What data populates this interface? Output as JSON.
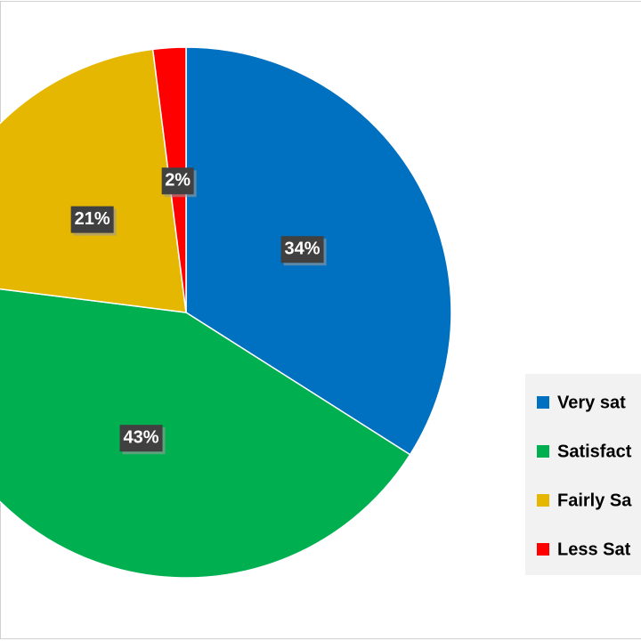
{
  "chart_data": {
    "type": "pie",
    "categories": [
      "Very sat",
      "Satisfact",
      "Fairly Sa",
      "Less Sat"
    ],
    "values": [
      34,
      43,
      21,
      2
    ],
    "value_labels": [
      "34%",
      "43%",
      "21%",
      "2%"
    ],
    "colors": [
      "#0070c0",
      "#00b050",
      "#e6b700",
      "#ff0000"
    ],
    "legend": "right"
  }
}
